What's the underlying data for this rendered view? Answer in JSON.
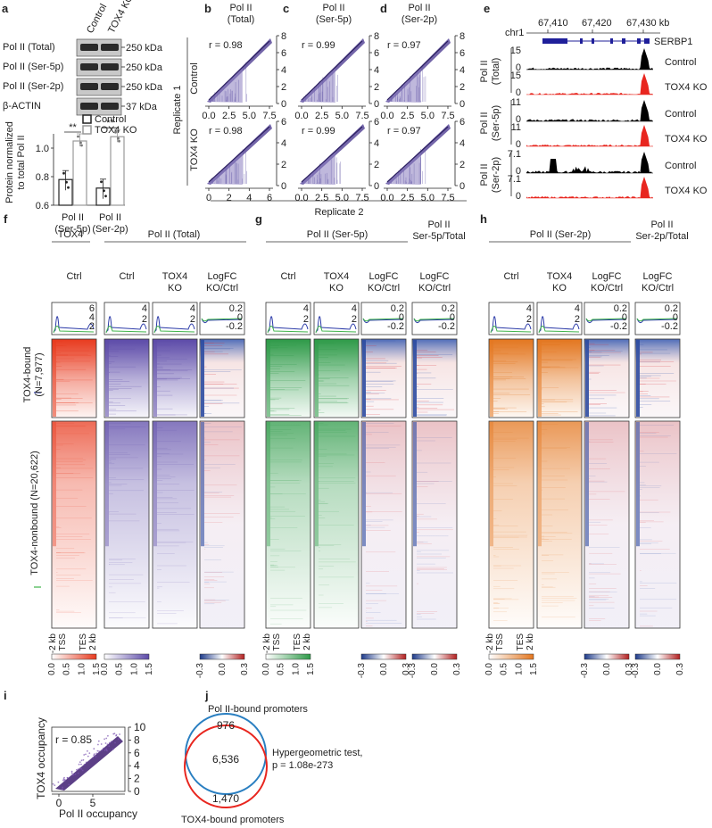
{
  "panels": {
    "a": "a",
    "b": "b",
    "c": "c",
    "d": "d",
    "e": "e",
    "f": "f",
    "g": "g",
    "h": "h",
    "i": "i",
    "j": "j"
  },
  "panel_a": {
    "lanes": [
      "Control",
      "TOX4 KO"
    ],
    "blots": [
      {
        "name": "Pol II (Total)",
        "size": "250 kDa"
      },
      {
        "name": "Pol II (Ser-5p)",
        "size": "250 kDa"
      },
      {
        "name": "Pol II (Ser-2p)",
        "size": "250 kDa"
      },
      {
        "name": "β-ACTIN",
        "size": "37 kDa"
      }
    ],
    "legend": [
      "Control",
      "TOX4 KO"
    ],
    "ylabel_line1": "Protein normalized",
    "ylabel_line2": "to total Pol II",
    "yticks": [
      "1.0",
      "0.8",
      "0.6"
    ],
    "groups": [
      {
        "label_line1": "Pol II",
        "label_line2": "(Ser-5p)",
        "control": 0.78,
        "ko": 1.05,
        "sig": "**"
      },
      {
        "label_line1": "Pol II",
        "label_line2": "(Ser-2p)",
        "control": 0.72,
        "ko": 1.08,
        "sig": "**"
      }
    ]
  },
  "scatter_panels": {
    "cols": [
      {
        "letter": "b",
        "title1": "Pol II",
        "title2": "(Total)",
        "r_top": "r = 0.98",
        "r_bot": "r = 0.98",
        "xticks_top": [
          "0.0",
          "2.5",
          "5.0",
          "7.5"
        ],
        "xticks_bot": [
          "0",
          "2",
          "4",
          "6"
        ]
      },
      {
        "letter": "c",
        "title1": "Pol II",
        "title2": "(Ser-5p)",
        "r_top": "r = 0.99",
        "r_bot": "r = 0.99",
        "xticks_top": [
          "0.0",
          "2.5",
          "5.0",
          "7.5"
        ],
        "xticks_bot": [
          "0.0",
          "2.5",
          "5.0",
          "7.5"
        ]
      },
      {
        "letter": "d",
        "title1": "Pol II",
        "title2": "(Ser-2p)",
        "r_top": "r = 0.97",
        "r_bot": "r = 0.97",
        "xticks_top": [
          "0.0",
          "2.5",
          "5.0",
          "7.5"
        ],
        "xticks_bot": [
          "0.0",
          "2.5",
          "5.0",
          "7.5"
        ]
      }
    ],
    "yticks_top": [
      "8",
      "6",
      "4",
      "2",
      "0"
    ],
    "yticks_bot": [
      "6",
      "4",
      "2",
      "0"
    ],
    "row_labels": [
      "Control",
      "TOX4 KO"
    ],
    "ylabel": "Replicate 1",
    "xlabel": "Replicate 2"
  },
  "panel_e": {
    "chrom": "chr1",
    "coords": [
      "67,410",
      "67,420",
      "67,430 kb"
    ],
    "gene": "SERBP1",
    "tracks": [
      {
        "group": "Pol II (Total)",
        "g1": "Pol II",
        "g2": "(Total)",
        "label": "Control",
        "max": "15",
        "color": "#000000"
      },
      {
        "group": "",
        "g1": "",
        "g2": "",
        "label": "TOX4 KO",
        "max": "15",
        "color": "#e8261f"
      },
      {
        "group": "Pol II (Ser-5p)",
        "g1": "Pol II",
        "g2": "(Ser-5p)",
        "label": "Control",
        "max": "11",
        "color": "#000000"
      },
      {
        "group": "",
        "g1": "",
        "g2": "",
        "label": "TOX4 KO",
        "max": "11",
        "color": "#e8261f"
      },
      {
        "group": "Pol II (Ser-2p)",
        "g1": "Pol II",
        "g2": "(Ser-2p)",
        "label": "Control",
        "max": "7.1",
        "color": "#000000"
      },
      {
        "group": "",
        "g1": "",
        "g2": "",
        "label": "TOX4 KO",
        "max": "7.1",
        "color": "#e8261f"
      }
    ],
    "zero": "0"
  },
  "heatmaps": {
    "group_headers": {
      "f_tox4": "TOX4",
      "f_pol": "Pol II (Total)",
      "g_pol": "Pol II (Ser-5p)",
      "h_pol": "Pol II (Ser-2p)"
    },
    "ratio_titles": {
      "g1": "Pol II",
      "g2": "Ser-5p/Total",
      "h1": "Pol II",
      "h2": "Ser-2p/Total"
    },
    "columns": [
      {
        "t1": "Ctrl",
        "t2": "",
        "color": "#e83a1e",
        "type": "seq",
        "profile": [
          "6",
          "4",
          "2"
        ]
      },
      {
        "t1": "Ctrl",
        "t2": "",
        "color": "#5c4aa8",
        "type": "seq",
        "profile": [
          "4",
          "2"
        ]
      },
      {
        "t1": "TOX4",
        "t2": "KO",
        "color": "#5c4aa8",
        "type": "seq",
        "profile": [
          "4",
          "2"
        ]
      },
      {
        "t1": "LogFC",
        "t2": "KO/Ctrl",
        "color": "#2b55a8",
        "type": "div",
        "profile": [
          "0.2",
          "0",
          "-0.2"
        ]
      },
      {
        "t1": "Ctrl",
        "t2": "",
        "color": "#2e9a48",
        "type": "seq",
        "profile": [
          "4",
          "2"
        ]
      },
      {
        "t1": "TOX4",
        "t2": "KO",
        "color": "#2e9a48",
        "type": "seq",
        "profile": [
          "4",
          "2"
        ]
      },
      {
        "t1": "LogFC",
        "t2": "KO/Ctrl",
        "color": "#2b55a8",
        "type": "div",
        "profile": [
          "0.2",
          "0",
          "-0.2"
        ]
      },
      {
        "t1": "LogFC",
        "t2": "KO/Ctrl",
        "color": "#2b55a8",
        "type": "div",
        "profile": [
          "0.2",
          "0",
          "-0.2"
        ]
      },
      {
        "t1": "Ctrl",
        "t2": "",
        "color": "#e3761f",
        "type": "seq",
        "profile": [
          "4",
          "2"
        ]
      },
      {
        "t1": "TOX4",
        "t2": "KO",
        "color": "#e3761f",
        "type": "seq",
        "profile": [
          "4",
          "2"
        ]
      },
      {
        "t1": "LogFC",
        "t2": "KO/Ctrl",
        "color": "#2b55a8",
        "type": "div",
        "profile": [
          "0.2",
          "0",
          "-0.2"
        ]
      },
      {
        "t1": "LogFC",
        "t2": "KO/Ctrl",
        "color": "#2b55a8",
        "type": "div",
        "profile": [
          "0.2",
          "0",
          "-0.2"
        ]
      }
    ],
    "rows": {
      "bound_l1": "TOX4-bound",
      "bound_l2": "(N=7,977)",
      "nonbound": "TOX4-nonbound (N=20,622)"
    },
    "axis": {
      "start": "-2 kb",
      "tss": "TSS",
      "tes": "TES",
      "end": "2 kb"
    },
    "scales": {
      "seq": [
        "0.0",
        "0.5",
        "1.0",
        "1.5"
      ],
      "div": [
        "-0.3",
        "0.0",
        "0.3"
      ]
    },
    "scale_colors": {
      "f": "#e83a1e",
      "purple": "#5c4aa8",
      "green": "#2e9a48",
      "orange": "#e3761f"
    }
  },
  "panel_i": {
    "r": "r = 0.85",
    "ylabel": "TOX4 occupancy",
    "xlabel": "Pol II occupancy",
    "yticks": [
      "10",
      "8",
      "6",
      "4",
      "2",
      "0"
    ],
    "xticks": [
      "0",
      "5"
    ],
    "chart_data": {
      "type": "scatter",
      "title": "",
      "xlabel": "Pol II occupancy",
      "ylabel": "TOX4 occupancy",
      "r": 0.85,
      "xlim": [
        0,
        10
      ],
      "ylim": [
        0,
        10
      ]
    }
  },
  "panel_j": {
    "set_a": "Pol II-bound promoters",
    "set_b": "TOX4-bound promoters",
    "only_a": "976",
    "both": "6,536",
    "only_b": "1,470",
    "test_line1": "Hypergeometric test,",
    "test_line2": "p = 1.08e-273",
    "color_a": "#2a7fc1",
    "color_b": "#e8261f"
  },
  "chart_data": [
    {
      "type": "bar",
      "title": "Protein normalized to total Pol II",
      "categories": [
        "Pol II (Ser-5p)",
        "Pol II (Ser-2p)"
      ],
      "series": [
        {
          "name": "Control",
          "values": [
            0.78,
            0.72
          ]
        },
        {
          "name": "TOX4 KO",
          "values": [
            1.05,
            1.08
          ]
        }
      ],
      "ylim": [
        0.6,
        1.1
      ]
    },
    {
      "type": "scatter",
      "title": "Pol II (Total) replicate correlation",
      "r": [
        0.98,
        0.98
      ]
    },
    {
      "type": "scatter",
      "title": "Pol II (Ser-5p) replicate correlation",
      "r": [
        0.99,
        0.99
      ]
    },
    {
      "type": "scatter",
      "title": "Pol II (Ser-2p) replicate correlation",
      "r": [
        0.97,
        0.97
      ]
    },
    {
      "type": "heatmap",
      "title": "Heatmaps around gene bodies",
      "rows": [
        "TOX4-bound (N=7,977)",
        "TOX4-nonbound (N=20,622)"
      ]
    }
  ]
}
